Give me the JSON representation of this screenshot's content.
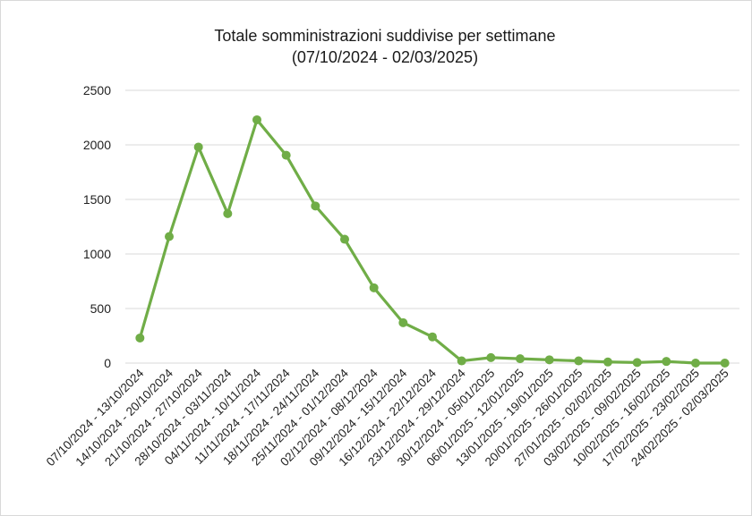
{
  "chart_data": {
    "type": "line",
    "title": "Totale somministrazioni suddivise per settimane",
    "subtitle": "(07/10/2024 - 02/03/2025)",
    "xlabel": "",
    "ylabel": "",
    "ylim": [
      0,
      2500
    ],
    "yticks": [
      0,
      500,
      1000,
      1500,
      2000,
      2500
    ],
    "grid": true,
    "legend": "none",
    "color": "#70ad47",
    "categories": [
      "07/10/2024 - 13/10/2024",
      "14/10/2024 - 20/10/2024",
      "21/10/2024 - 27/10/2024",
      "28/10/2024 - 03/11/2024",
      "04/11/2024 - 10/11/2024",
      "11/11/2024 - 17/11/2024",
      "18/11/2024 - 24/11/2024",
      "25/11/2024 - 01/12/2024",
      "02/12/2024 - 08/12/2024",
      "09/12/2024 - 15/12/2024",
      "16/12/2024 - 22/12/2024",
      "23/12/2024 - 29/12/2024",
      "30/12/2024 - 05/01/2025",
      "06/01/2025 - 12/01/2025",
      "13/01/2025 - 19/01/2025",
      "20/01/2025 - 26/01/2025",
      "27/01/2025 - 02/02/2025",
      "03/02/2025 - 09/02/2025",
      "10/02/2025 - 16/02/2025",
      "17/02/2025 - 23/02/2025",
      "24/02/2025 - 02/03/2025"
    ],
    "values": [
      230,
      1160,
      1980,
      1370,
      2230,
      1905,
      1440,
      1135,
      690,
      370,
      240,
      20,
      50,
      40,
      30,
      20,
      10,
      5,
      15,
      0,
      0
    ]
  }
}
